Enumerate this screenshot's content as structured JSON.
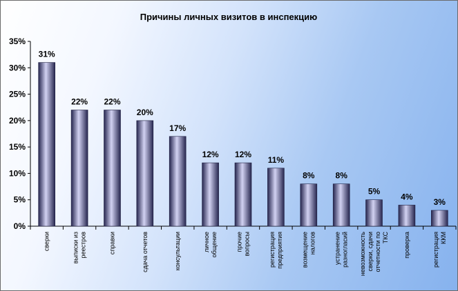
{
  "chart_data": {
    "type": "bar",
    "title": "Причины личных визитов в инспекцию",
    "categories": [
      [
        "сверки"
      ],
      [
        "выписки из",
        "реестров"
      ],
      [
        "справки"
      ],
      [
        "сдача отчетов"
      ],
      [
        "консультации"
      ],
      [
        "личное",
        "общение"
      ],
      [
        "прочие",
        "вопросы"
      ],
      [
        "регистрация",
        "предприятия"
      ],
      [
        "возмещение",
        "налогов"
      ],
      [
        "устранение",
        "разногласий"
      ],
      [
        "невозможность",
        "сверки, сдачи",
        "отчетности по",
        "ТКС"
      ],
      [
        "проверка"
      ],
      [
        "регистрация",
        "ККМ"
      ]
    ],
    "values": [
      31,
      22,
      22,
      20,
      17,
      12,
      12,
      11,
      8,
      8,
      5,
      4,
      3
    ],
    "data_labels": [
      "31%",
      "22%",
      "22%",
      "20%",
      "17%",
      "12%",
      "12%",
      "11%",
      "8%",
      "8%",
      "5%",
      "4%",
      "3%"
    ],
    "ylim": [
      0,
      35
    ],
    "yticks": [
      "0%",
      "5%",
      "10%",
      "15%",
      "20%",
      "25%",
      "30%",
      "35%"
    ],
    "grid": false,
    "legend": "none",
    "colors": {
      "bar_dark": "#26264f",
      "bar_mid": "#8c8cd0",
      "bar_light": "#d2d2f2"
    }
  }
}
